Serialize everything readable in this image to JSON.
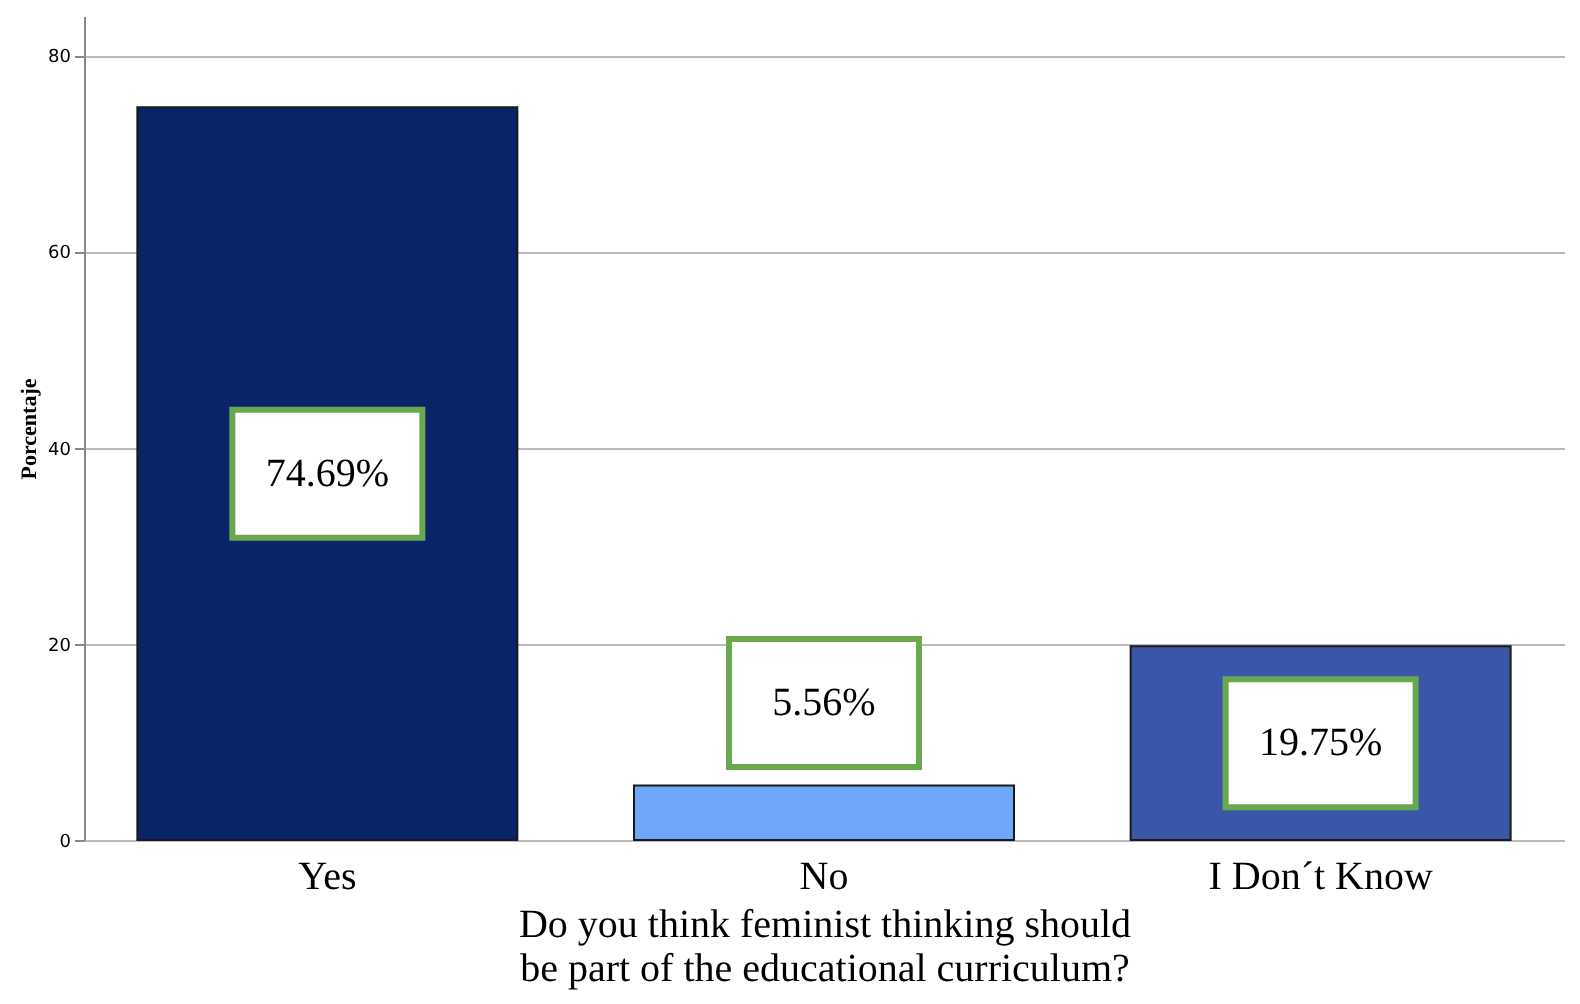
{
  "chart_data": {
    "type": "bar",
    "xlabel": "Do you think feminist thinking should be part of the educational curriculum?",
    "ylabel": "Porcentaje",
    "categories": [
      "Yes",
      "No",
      "I Don´t Know"
    ],
    "values": [
      74.69,
      5.56,
      19.75
    ],
    "colors": [
      "#0a2468",
      "#6ea6fa",
      "#3a56a8"
    ],
    "value_labels": [
      "74.69%",
      "5.56%",
      "19.75%"
    ],
    "ylim": [
      0,
      84
    ],
    "yticks": [
      0,
      20,
      40,
      60,
      80
    ],
    "grid": "y",
    "legend": false
  }
}
